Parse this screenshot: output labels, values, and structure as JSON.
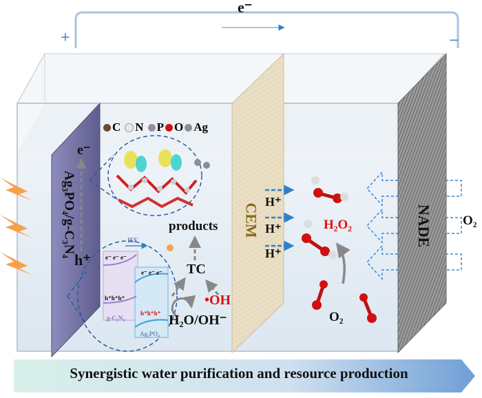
{
  "circuit": {
    "electron_label": "e⁻",
    "positive_label": "+",
    "negative_label": "−"
  },
  "legend": {
    "items": [
      {
        "label": "C",
        "color": "#6b4a2e"
      },
      {
        "label": "N",
        "color": "#e8e8e8"
      },
      {
        "label": "P",
        "color": "#9a8aa8"
      },
      {
        "label": "O",
        "color": "#d01010"
      },
      {
        "label": "Ag",
        "color": "#8a8f96"
      }
    ]
  },
  "photoanode": {
    "label": "Ag₃PO₄/g-C₃N₄",
    "electron": "e⁻",
    "hole": "h⁺",
    "color": "#7a78a8"
  },
  "mechanism": {
    "products": "products",
    "tc": "TC",
    "radical": "•OH",
    "water": "H₂O/OH⁻",
    "ief": "IEF",
    "gcn_label": "g-C₃N₄",
    "agp_label": "Ag₃PO₄",
    "electrons": "e⁻ e⁻ e⁻",
    "holes": "h⁺h⁺h⁺",
    "radical_color": "#e01010"
  },
  "membrane": {
    "label": "CEM",
    "color": "#8a6a1a"
  },
  "protons": [
    "H⁺",
    "H⁺",
    "H⁺"
  ],
  "cathode": {
    "label": "NADE",
    "product": "H₂O₂",
    "reactant": "O₂",
    "gas_in": "O₂"
  },
  "banner": {
    "text": "Synergistic water purification and resource production"
  }
}
